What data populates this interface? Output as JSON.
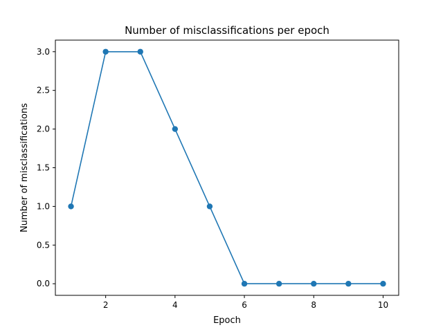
{
  "chart_data": {
    "type": "line",
    "title": "Number of misclassifications per epoch",
    "xlabel": "Epoch",
    "ylabel": "Number of misclassifications",
    "x": [
      1,
      2,
      3,
      4,
      5,
      6,
      7,
      8,
      9,
      10
    ],
    "series": [
      {
        "values": [
          1,
          3,
          3,
          2,
          1,
          0,
          0,
          0,
          0,
          0
        ],
        "color": "#1f77b4",
        "marker": "circle"
      }
    ],
    "xlim": [
      0.55,
      10.45
    ],
    "ylim": [
      -0.15,
      3.15
    ],
    "xticks": [
      2,
      4,
      6,
      8,
      10
    ],
    "xtick_labels": [
      "2",
      "4",
      "6",
      "8",
      "10"
    ],
    "yticks": [
      0.0,
      0.5,
      1.0,
      1.5,
      2.0,
      2.5,
      3.0
    ],
    "ytick_labels": [
      "0.0",
      "0.5",
      "1.0",
      "1.5",
      "2.0",
      "2.5",
      "3.0"
    ],
    "grid": false,
    "legend": "none"
  }
}
